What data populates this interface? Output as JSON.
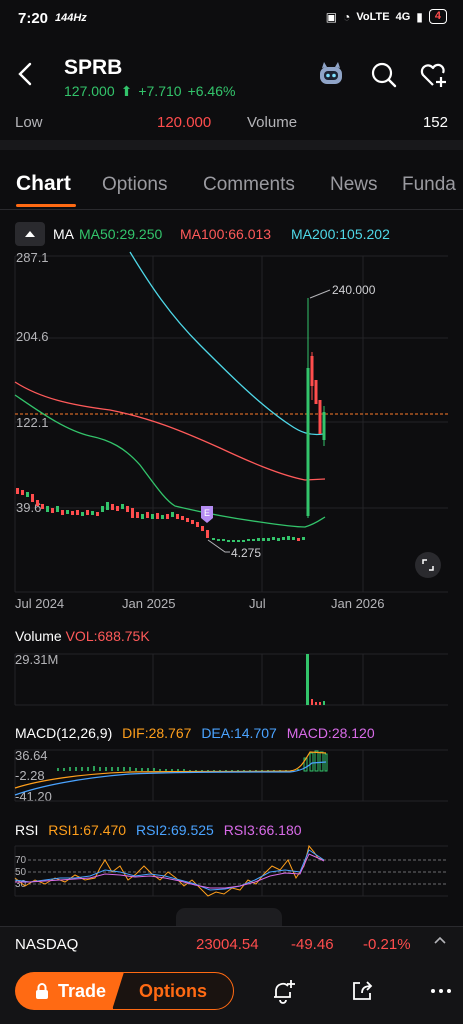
{
  "status_bar": {
    "time": "7:20",
    "refresh": "144Hz",
    "network": "VoLTE",
    "signal_label": "4G",
    "battery": "4"
  },
  "header": {
    "ticker": "SPRB",
    "price": "127.000",
    "change": "+7.710",
    "change_pct": "+6.46%"
  },
  "stats": {
    "low_label": "Low",
    "low_value": "120.000",
    "volume_label": "Volume",
    "volume_value": "152"
  },
  "tabs": [
    "Chart",
    "Options",
    "Comments",
    "News",
    "Funda"
  ],
  "ma_legend": {
    "label": "MA",
    "ma50": "MA50:29.250",
    "ma100": "MA100:66.013",
    "ma200": "MA200:105.202"
  },
  "colors": {
    "up": "#33c46b",
    "down": "#ff4d4d",
    "accent": "#ff6a13",
    "ma50": "#33c46b",
    "ma100": "#ff5a5a",
    "ma200": "#4fd8e8",
    "dif": "#ff9f1c",
    "dea": "#4aa3ff",
    "macd": "#d86be8"
  },
  "price_axis": [
    "287.1",
    "204.6",
    "122.1",
    "39.6"
  ],
  "annotations": {
    "high": "240.000",
    "low": "4.275"
  },
  "x_axis": [
    "Jul 2024",
    "Jan 2025",
    "Jul",
    "Jan 2026"
  ],
  "volume": {
    "title": "Volume",
    "value": "VOL:688.75K",
    "axis_top": "29.31M"
  },
  "macd": {
    "title": "MACD(12,26,9)",
    "dif": "DIF:28.767",
    "dea": "DEA:14.707",
    "macd": "MACD:28.120",
    "axis": [
      "36.64",
      "-2.28",
      "-41.20"
    ]
  },
  "rsi": {
    "title": "RSI",
    "rsi1": "RSI1:67.470",
    "rsi2": "RSI2:69.525",
    "rsi3": "RSI3:66.180",
    "levels": [
      "70",
      "50",
      "30"
    ]
  },
  "index": {
    "name": "NASDAQ",
    "value": "23004.54",
    "change": "-49.46",
    "change_pct": "-0.21%"
  },
  "bottom": {
    "trade": "Trade",
    "options": "Options"
  },
  "icons": [
    "back-arrow-icon",
    "robot-icon",
    "search-icon",
    "heart-plus-icon",
    "fullscreen-icon",
    "bell-plus-icon",
    "share-icon",
    "more-icon",
    "lock-icon",
    "caret-up-icon"
  ]
}
